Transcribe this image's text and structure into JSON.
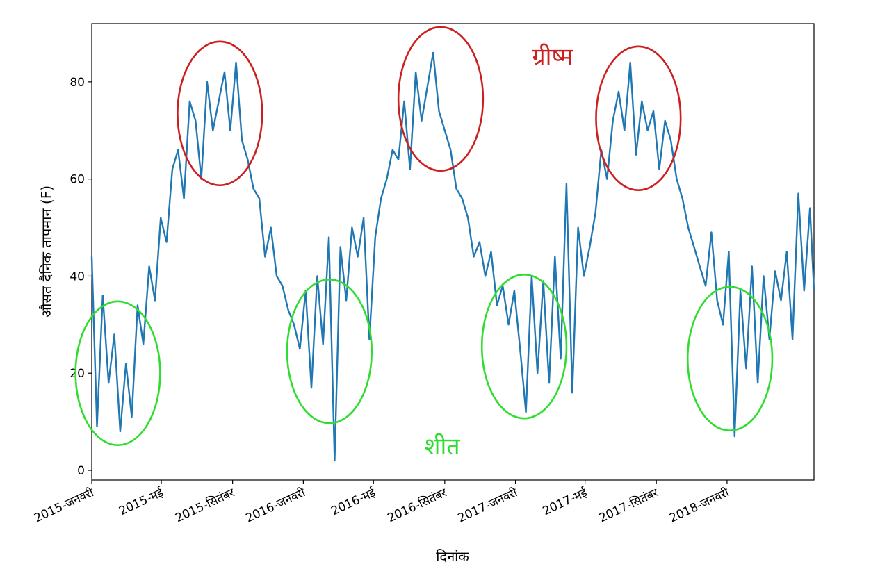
{
  "chart_data": {
    "type": "line",
    "title": "",
    "xlabel": "दिनांक",
    "ylabel": "औसत दैनिक तापमान (F)",
    "x_range": [
      "2015-01-01",
      "2018-05-31"
    ],
    "ylim": [
      -2,
      92
    ],
    "grid": false,
    "line_color": "#1f77b4",
    "x_ticks": [
      {
        "date": "2015-01-01",
        "label": "2015-जनवरी"
      },
      {
        "date": "2015-05-01",
        "label": "2015-मई"
      },
      {
        "date": "2015-09-01",
        "label": "2015-सितंबर"
      },
      {
        "date": "2016-01-01",
        "label": "2016-जनवरी"
      },
      {
        "date": "2016-05-01",
        "label": "2016-मई"
      },
      {
        "date": "2016-09-01",
        "label": "2016-सितंबर"
      },
      {
        "date": "2017-01-01",
        "label": "2017-जनवरी"
      },
      {
        "date": "2017-05-01",
        "label": "2017-मई"
      },
      {
        "date": "2017-09-01",
        "label": "2017-सितंबर"
      },
      {
        "date": "2018-01-01",
        "label": "2018-जनवरी"
      }
    ],
    "y_ticks": [
      0,
      20,
      40,
      60,
      80
    ],
    "series": [
      {
        "x": [
          "2015-01-01",
          "2015-01-10",
          "2015-01-20",
          "2015-01-30",
          "2015-02-09",
          "2015-02-19",
          "2015-03-01",
          "2015-03-11",
          "2015-03-21",
          "2015-03-31",
          "2015-04-10",
          "2015-04-20",
          "2015-04-30",
          "2015-05-10",
          "2015-05-20",
          "2015-05-30",
          "2015-06-09",
          "2015-06-19",
          "2015-06-29",
          "2015-07-09",
          "2015-07-19",
          "2015-07-29",
          "2015-08-08",
          "2015-08-18",
          "2015-08-28",
          "2015-09-07",
          "2015-09-17",
          "2015-09-27",
          "2015-10-07",
          "2015-10-17",
          "2015-10-27",
          "2015-11-06",
          "2015-11-16",
          "2015-11-26",
          "2015-12-06",
          "2015-12-16",
          "2015-12-26",
          "2016-01-05",
          "2016-01-15",
          "2016-01-25",
          "2016-02-04",
          "2016-02-14",
          "2016-02-24",
          "2016-03-05",
          "2016-03-15",
          "2016-03-25",
          "2016-04-04",
          "2016-04-14",
          "2016-04-24",
          "2016-05-04",
          "2016-05-14",
          "2016-05-24",
          "2016-06-03",
          "2016-06-13",
          "2016-06-23",
          "2016-07-03",
          "2016-07-13",
          "2016-07-23",
          "2016-08-02",
          "2016-08-12",
          "2016-08-22",
          "2016-09-01",
          "2016-09-11",
          "2016-09-21",
          "2016-10-01",
          "2016-10-11",
          "2016-10-21",
          "2016-10-31",
          "2016-11-10",
          "2016-11-20",
          "2016-11-30",
          "2016-12-10",
          "2016-12-20",
          "2016-12-30",
          "2017-01-09",
          "2017-01-19",
          "2017-01-29",
          "2017-02-08",
          "2017-02-18",
          "2017-02-28",
          "2017-03-10",
          "2017-03-20",
          "2017-03-30",
          "2017-04-09",
          "2017-04-19",
          "2017-04-29",
          "2017-05-09",
          "2017-05-19",
          "2017-05-29",
          "2017-06-08",
          "2017-06-18",
          "2017-06-28",
          "2017-07-08",
          "2017-07-18",
          "2017-07-28",
          "2017-08-07",
          "2017-08-17",
          "2017-08-27",
          "2017-09-06",
          "2017-09-16",
          "2017-09-26",
          "2017-10-06",
          "2017-10-16",
          "2017-10-26",
          "2017-11-05",
          "2017-11-15",
          "2017-11-25",
          "2017-12-05",
          "2017-12-15",
          "2017-12-25",
          "2018-01-04",
          "2018-01-14",
          "2018-01-24",
          "2018-02-03",
          "2018-02-13",
          "2018-02-23",
          "2018-03-05",
          "2018-03-15",
          "2018-03-25",
          "2018-04-04",
          "2018-04-14",
          "2018-04-24",
          "2018-05-04",
          "2018-05-14",
          "2018-05-24",
          "2018-05-31"
        ],
        "values": [
          44,
          9,
          36,
          18,
          28,
          8,
          22,
          11,
          34,
          26,
          42,
          35,
          52,
          47,
          62,
          66,
          56,
          76,
          72,
          60,
          80,
          70,
          76,
          82,
          70,
          84,
          68,
          64,
          58,
          56,
          44,
          50,
          40,
          38,
          33,
          30,
          25,
          37,
          17,
          40,
          26,
          48,
          2,
          46,
          35,
          50,
          44,
          52,
          27,
          48,
          56,
          60,
          66,
          64,
          76,
          62,
          82,
          72,
          79,
          86,
          74,
          70,
          66,
          58,
          56,
          52,
          44,
          47,
          40,
          45,
          34,
          38,
          30,
          37,
          25,
          12,
          40,
          20,
          39,
          18,
          44,
          23,
          59,
          16,
          50,
          40,
          46,
          53,
          66,
          60,
          72,
          78,
          70,
          84,
          65,
          76,
          70,
          74,
          62,
          72,
          68,
          60,
          56,
          50,
          46,
          42,
          38,
          49,
          35,
          30,
          45,
          7,
          37,
          21,
          42,
          18,
          40,
          27,
          41,
          35,
          45,
          27,
          57,
          37,
          54,
          37
        ]
      }
    ],
    "annotations": [
      {
        "text": "ग्रीष्म",
        "color": "#cc1f1f"
      },
      {
        "text": "शीत",
        "color": "#2fdd2f"
      }
    ],
    "circles": [
      {
        "type": "summer",
        "color": "#cc1f1f",
        "cx_date": "2015-08-10",
        "cy": 73.5,
        "rx_days": 73,
        "ry": 14.8
      },
      {
        "type": "summer",
        "color": "#cc1f1f",
        "cx_date": "2016-08-25",
        "cy": 76.5,
        "rx_days": 73,
        "ry": 14.8
      },
      {
        "type": "summer",
        "color": "#cc1f1f",
        "cx_date": "2017-08-01",
        "cy": 72.5,
        "rx_days": 73,
        "ry": 14.8
      },
      {
        "type": "winter",
        "color": "#2fdd2f",
        "cx_date": "2015-02-15",
        "cy": 20.0,
        "rx_days": 73,
        "ry": 14.8
      },
      {
        "type": "winter",
        "color": "#2fdd2f",
        "cx_date": "2016-02-15",
        "cy": 24.5,
        "rx_days": 73,
        "ry": 14.8
      },
      {
        "type": "winter",
        "color": "#2fdd2f",
        "cx_date": "2017-01-16",
        "cy": 25.5,
        "rx_days": 73,
        "ry": 14.8
      },
      {
        "type": "winter",
        "color": "#2fdd2f",
        "cx_date": "2018-01-06",
        "cy": 23.0,
        "rx_days": 73,
        "ry": 14.8
      }
    ]
  }
}
